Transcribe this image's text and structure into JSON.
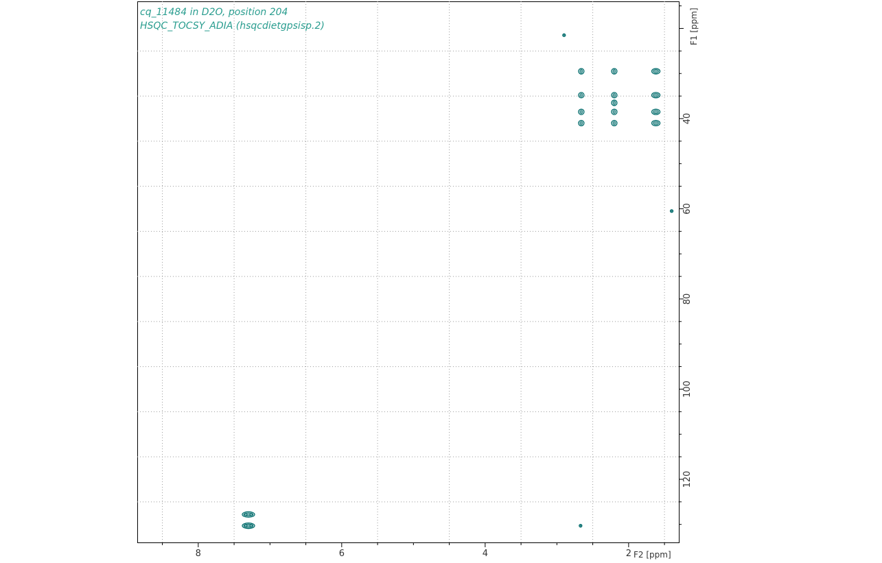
{
  "chart_data": {
    "type": "scatter",
    "subtype": "2D NMR contour plot",
    "title_lines": [
      "cq_11484 in D2O, position 204",
      "HSQC_TOCSY_ADIA (hsqcdietgpsisp.2)"
    ],
    "xlabel": "F2 [ppm]",
    "ylabel": "F1 [ppm]",
    "xlim": [
      8.85,
      1.3
    ],
    "ylim": [
      14,
      134
    ],
    "x_reversed": true,
    "y_reversed": true,
    "x_ticks": [
      8,
      6,
      4,
      2
    ],
    "y_ticks": [
      40,
      60,
      80,
      100,
      120
    ],
    "grid": true,
    "contour_color": "#006b6b",
    "title_color": "#2a9d8f",
    "series": [
      {
        "points": [
          {
            "x": 2.9,
            "y": 21.5
          },
          {
            "x": 2.66,
            "y": 29.5
          },
          {
            "x": 2.66,
            "y": 34.8
          },
          {
            "x": 2.66,
            "y": 38.5
          },
          {
            "x": 2.66,
            "y": 41.0
          },
          {
            "x": 2.2,
            "y": 29.5
          },
          {
            "x": 2.2,
            "y": 34.8
          },
          {
            "x": 2.2,
            "y": 36.5
          },
          {
            "x": 2.2,
            "y": 38.5
          },
          {
            "x": 2.2,
            "y": 41.0
          },
          {
            "x": 1.62,
            "y": 29.5
          },
          {
            "x": 1.62,
            "y": 34.8
          },
          {
            "x": 1.62,
            "y": 38.5
          },
          {
            "x": 1.62,
            "y": 41.0
          },
          {
            "x": 1.4,
            "y": 60.5
          },
          {
            "x": 7.3,
            "y": 127.8
          },
          {
            "x": 7.3,
            "y": 130.3
          },
          {
            "x": 2.67,
            "y": 130.3
          }
        ]
      }
    ]
  }
}
